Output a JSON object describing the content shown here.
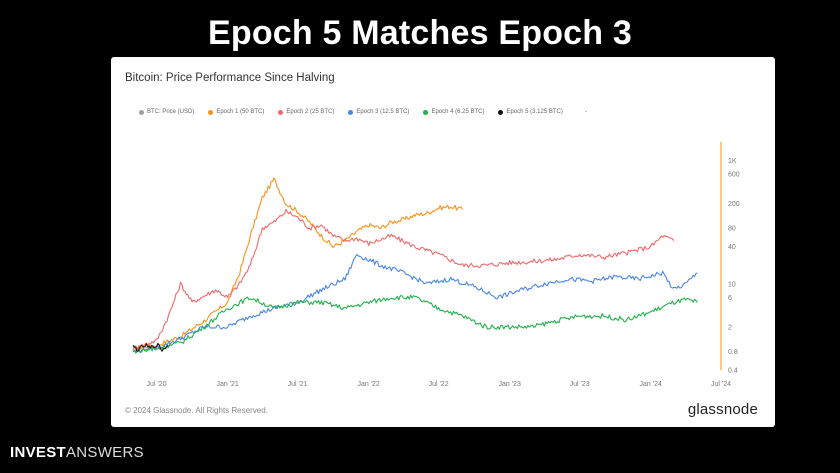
{
  "slide": {
    "title": "Epoch 5 Matches Epoch 3"
  },
  "brand": {
    "bold": "INVEST",
    "light": "ANSWERS"
  },
  "card": {
    "copyright": "© 2024 Glassnode. All Rights Reserved.",
    "logo": "glassnode"
  },
  "chart_data": {
    "type": "line",
    "title": "Bitcoin: Price Performance Since Halving",
    "y_scale": "log",
    "ylim": [
      0.4,
      2000
    ],
    "xlim": [
      "2020-05",
      "2024-07"
    ],
    "x_ticks": [
      "Jul '20",
      "Jan '21",
      "Jul '21",
      "Jan '22",
      "Jul '22",
      "Jan '23",
      "Jul '23",
      "Jan '24",
      "Jul '24"
    ],
    "x_tick_dates": [
      "2020-07",
      "2021-01",
      "2021-07",
      "2022-01",
      "2022-07",
      "2023-01",
      "2023-07",
      "2024-01",
      "2024-07"
    ],
    "y_ticks": [
      "1K",
      "600",
      "200",
      "80",
      "40",
      "10",
      "6",
      "2",
      "0.8",
      "0.4"
    ],
    "y_tick_values": [
      1000,
      600,
      200,
      80,
      40,
      10,
      6,
      2,
      0.8,
      0.4
    ],
    "legend": [
      {
        "name": "BTC: Price (USD)",
        "color": "#9e9e9e"
      },
      {
        "name": "Epoch 1 (50 BTC)",
        "color": "#f7931a"
      },
      {
        "name": "Epoch 2 (25 BTC)",
        "color": "#f0686b"
      },
      {
        "name": "Epoch 3 (12.5 BTC)",
        "color": "#4a86e8"
      },
      {
        "name": "Epoch 4 (6.25 BTC)",
        "color": "#22b14c"
      },
      {
        "name": "Epoch 5 (3.125 BTC)",
        "color": "#111111"
      }
    ],
    "legend_extra": "-",
    "series": [
      {
        "name": "Epoch 1 (50 BTC)",
        "color": "#f7931a",
        "x": [
          "2020-05",
          "2020-07",
          "2020-09",
          "2020-11",
          "2021-01",
          "2021-02",
          "2021-03",
          "2021-04",
          "2021-05",
          "2021-06",
          "2021-07",
          "2021-08",
          "2021-09",
          "2021-10",
          "2021-11",
          "2021-12",
          "2022-01",
          "2022-02",
          "2022-03",
          "2022-04",
          "2022-05",
          "2022-06",
          "2022-07",
          "2022-08",
          "2022-09"
        ],
        "y": [
          0.9,
          1.0,
          1.4,
          2.5,
          5,
          15,
          60,
          250,
          500,
          200,
          150,
          100,
          60,
          40,
          50,
          70,
          90,
          80,
          100,
          110,
          130,
          140,
          170,
          180,
          160
        ]
      },
      {
        "name": "Epoch 2 (25 BTC)",
        "color": "#f0686b",
        "x": [
          "2020-05",
          "2020-07",
          "2020-08",
          "2020-09",
          "2020-10",
          "2020-12",
          "2021-01",
          "2021-02",
          "2021-03",
          "2021-04",
          "2021-05",
          "2021-06",
          "2021-07",
          "2021-08",
          "2021-09",
          "2021-10",
          "2021-11",
          "2021-12",
          "2022-01",
          "2022-03",
          "2022-05",
          "2022-07",
          "2022-09",
          "2022-11",
          "2023-01",
          "2023-03",
          "2023-05",
          "2023-07",
          "2023-09",
          "2023-11",
          "2024-01",
          "2024-02",
          "2024-03"
        ],
        "y": [
          0.9,
          1.2,
          3,
          10,
          5,
          8,
          6,
          10,
          20,
          80,
          100,
          150,
          120,
          80,
          90,
          60,
          50,
          55,
          45,
          60,
          40,
          30,
          20,
          20,
          22,
          23,
          25,
          30,
          27,
          32,
          40,
          60,
          50
        ]
      },
      {
        "name": "Epoch 3 (12.5 BTC)",
        "color": "#4a86e8",
        "x": [
          "2020-05",
          "2020-07",
          "2020-09",
          "2020-11",
          "2021-01",
          "2021-03",
          "2021-05",
          "2021-07",
          "2021-09",
          "2021-11",
          "2021-12",
          "2022-02",
          "2022-04",
          "2022-06",
          "2022-08",
          "2022-10",
          "2022-12",
          "2023-02",
          "2023-04",
          "2023-06",
          "2023-08",
          "2023-10",
          "2023-12",
          "2024-02",
          "2024-03",
          "2024-04",
          "2024-05"
        ],
        "y": [
          0.8,
          0.9,
          1.3,
          2,
          2,
          3,
          4,
          5,
          8,
          12,
          30,
          20,
          15,
          10,
          12,
          9,
          6,
          8,
          10,
          12,
          11,
          13,
          12,
          15,
          8,
          10,
          15
        ]
      },
      {
        "name": "Epoch 4 (6.25 BTC)",
        "color": "#22b14c",
        "x": [
          "2020-05",
          "2020-07",
          "2020-09",
          "2020-11",
          "2021-01",
          "2021-03",
          "2021-05",
          "2021-07",
          "2021-09",
          "2021-11",
          "2022-01",
          "2022-03",
          "2022-05",
          "2022-07",
          "2022-09",
          "2022-11",
          "2023-01",
          "2023-03",
          "2023-05",
          "2023-07",
          "2023-09",
          "2023-11",
          "2024-01",
          "2024-03",
          "2024-04",
          "2024-05"
        ],
        "y": [
          0.8,
          0.9,
          1.1,
          2.0,
          4,
          6,
          4,
          5,
          5,
          4,
          5,
          6,
          6,
          4,
          3,
          2,
          2,
          2,
          2.5,
          3,
          3,
          2.6,
          3.5,
          5,
          5.5,
          5
        ]
      },
      {
        "name": "Epoch 5 (3.125 BTC)",
        "color": "#111111",
        "x": [
          "2020-05",
          "2020-05-15",
          "2020-06",
          "2020-06-15",
          "2020-07",
          "2020-07-15",
          "2020-08"
        ],
        "y": [
          0.95,
          0.85,
          1.0,
          0.9,
          1.05,
          0.85,
          1.0
        ]
      }
    ]
  }
}
